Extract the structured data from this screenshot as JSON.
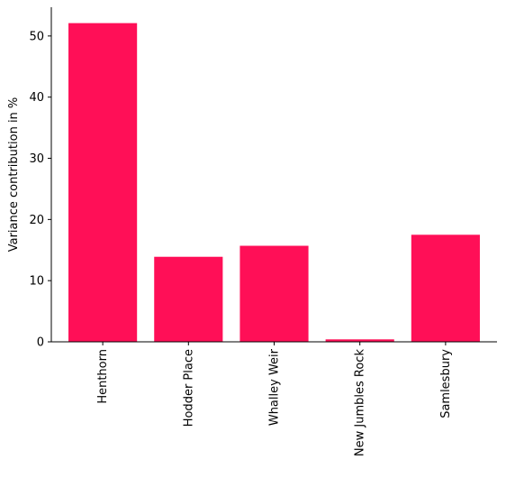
{
  "chart_data": {
    "type": "bar",
    "categories": [
      "Henthorn",
      "Hodder Place",
      "Whalley Weir",
      "New Jumbles Rock",
      "Samlesbury"
    ],
    "values": [
      52.1,
      13.9,
      15.7,
      0.4,
      17.5
    ],
    "title": "",
    "xlabel": "",
    "ylabel": "Variance contribution in %",
    "ylim": [
      0,
      54.7
    ],
    "yticks": [
      0,
      10,
      20,
      30,
      40,
      50
    ],
    "bar_color": "#ff0f57",
    "grid": false
  }
}
